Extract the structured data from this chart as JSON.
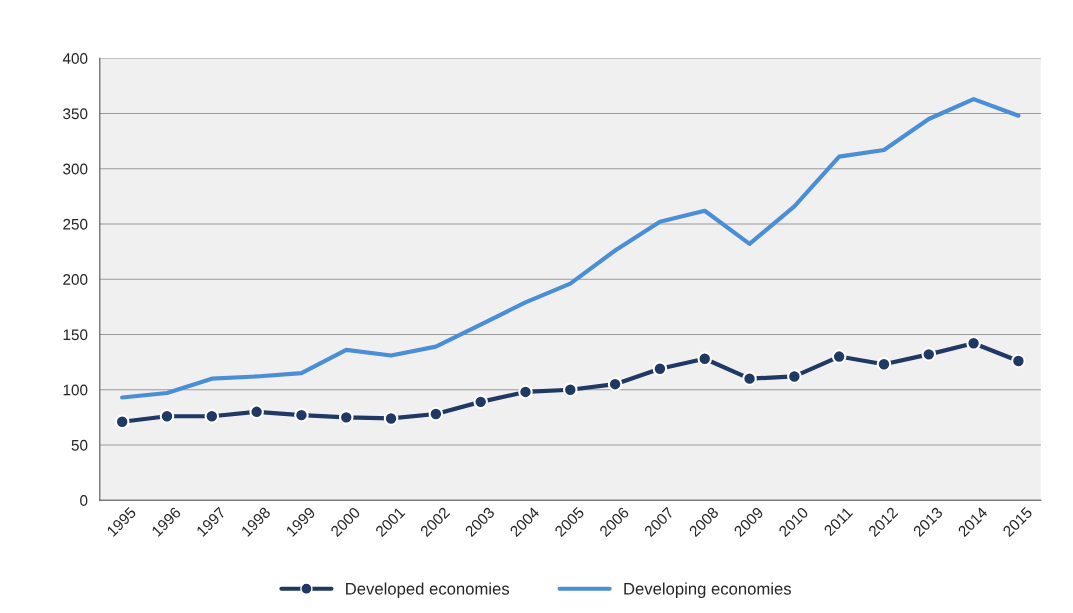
{
  "chart_data": {
    "type": "line",
    "categories": [
      "1995",
      "1996",
      "1997",
      "1998",
      "1999",
      "2000",
      "2001",
      "2002",
      "2003",
      "2004",
      "2005",
      "2006",
      "2007",
      "2008",
      "2009",
      "2010",
      "2011",
      "2012",
      "2013",
      "2014",
      "2015"
    ],
    "series": [
      {
        "name": "Developed economies",
        "color": "#203864",
        "marker": "circle",
        "values": [
          71,
          76,
          76,
          80,
          77,
          75,
          74,
          78,
          89,
          98,
          100,
          105,
          119,
          128,
          110,
          112,
          130,
          123,
          132,
          142,
          126
        ]
      },
      {
        "name": "Developing economies",
        "color": "#4a8fd6",
        "marker": "none",
        "values": [
          93,
          97,
          110,
          112,
          115,
          136,
          131,
          139,
          159,
          179,
          196,
          226,
          252,
          262,
          232,
          266,
          311,
          317,
          345,
          363,
          348
        ]
      }
    ],
    "ylim": [
      0,
      400
    ],
    "yticks": [
      0,
      50,
      100,
      150,
      200,
      250,
      300,
      350,
      400
    ],
    "grid": "y",
    "legend": "bottom",
    "line_style": "solid"
  }
}
